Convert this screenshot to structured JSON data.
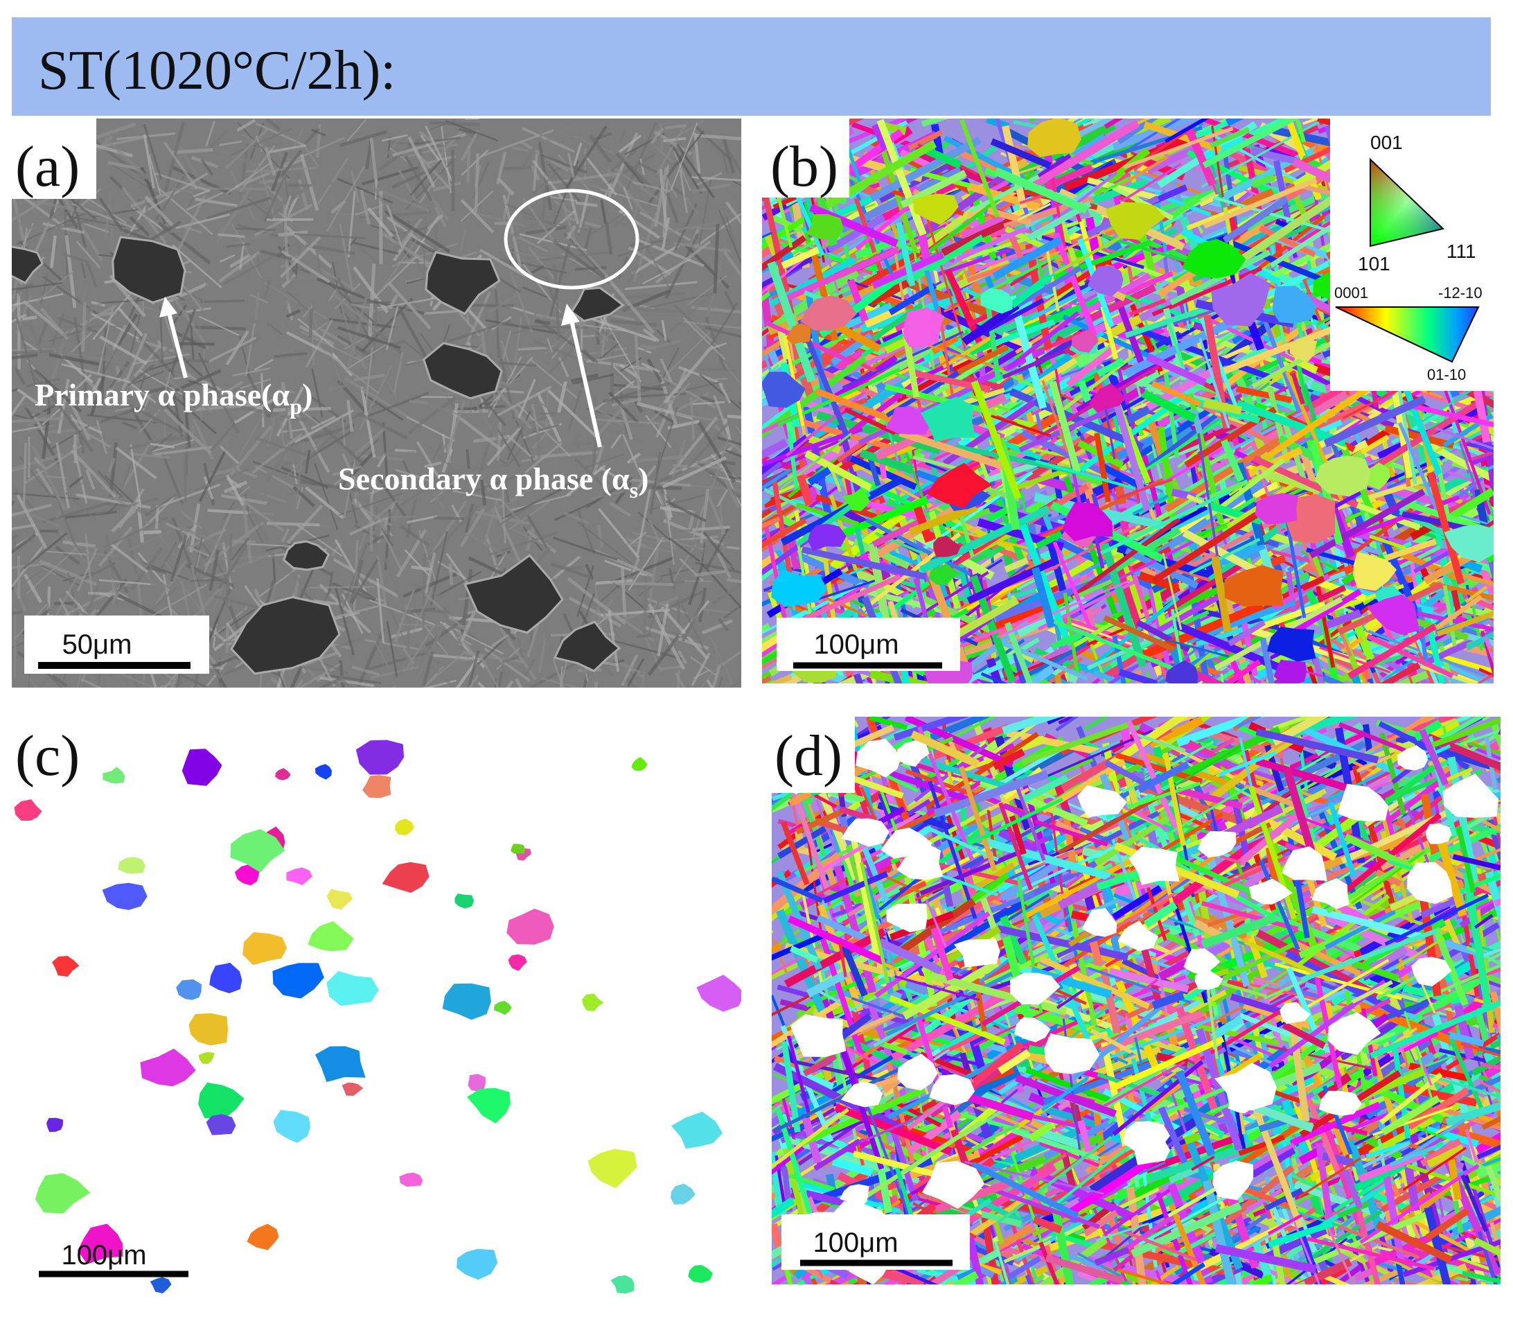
{
  "header": {
    "title": "ST(1020°C/2h):"
  },
  "panels": [
    {
      "label": "(a)",
      "scale_bar": "50μm",
      "annotations": [
        {
          "text": "Primary α phase(α",
          "subscript": "p",
          "suffix": ")"
        },
        {
          "text": "Secondary α phase (α",
          "subscript": "s",
          "suffix": ")"
        }
      ]
    },
    {
      "label": "(b)",
      "scale_bar": "100μm",
      "legend": {
        "cubic": {
          "top": "001",
          "left": "101",
          "right": "111"
        },
        "hexagonal": {
          "left": "0001",
          "right": "-12-10",
          "bottom": "01-10"
        }
      }
    },
    {
      "label": "(c)",
      "scale_bar": "100μm"
    },
    {
      "label": "(d)",
      "scale_bar": "100μm"
    }
  ]
}
